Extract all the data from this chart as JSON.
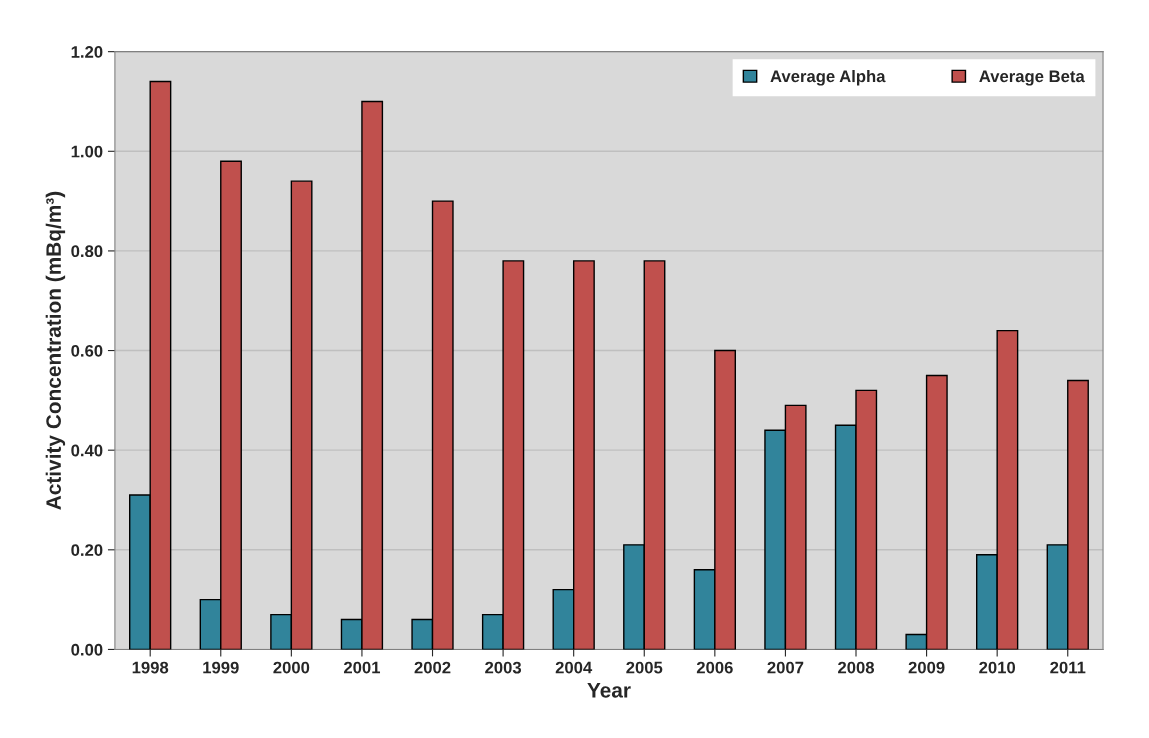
{
  "chart_data": {
    "type": "bar",
    "xlabel": "Year",
    "ylabel": "Activity Concentration (mBq/m³)",
    "categories": [
      "1998",
      "1999",
      "2000",
      "2001",
      "2002",
      "2003",
      "2004",
      "2005",
      "2006",
      "2007",
      "2008",
      "2009",
      "2010",
      "2011"
    ],
    "series": [
      {
        "name": "Average Alpha",
        "color": "#31849b",
        "values": [
          0.31,
          0.1,
          0.07,
          0.06,
          0.06,
          0.07,
          0.12,
          0.21,
          0.16,
          0.44,
          0.45,
          0.03,
          0.19,
          0.21
        ]
      },
      {
        "name": "Average Beta",
        "color": "#c0504d",
        "values": [
          1.14,
          0.98,
          0.94,
          1.1,
          0.9,
          0.78,
          0.78,
          0.78,
          0.6,
          0.49,
          0.52,
          0.55,
          0.64,
          0.54
        ]
      }
    ],
    "ylim": [
      0,
      1.2
    ],
    "yticks": [
      {
        "value": 0,
        "label": "0.00"
      },
      {
        "value": 0.2,
        "label": "0.20"
      },
      {
        "value": 0.4,
        "label": "0.40"
      },
      {
        "value": 0.6,
        "label": "0.60"
      },
      {
        "value": 0.8,
        "label": "0.80"
      },
      {
        "value": 1.0,
        "label": "1.00"
      },
      {
        "value": 1.2,
        "label": "1.20"
      }
    ],
    "grid": "y",
    "legend": "top right"
  }
}
